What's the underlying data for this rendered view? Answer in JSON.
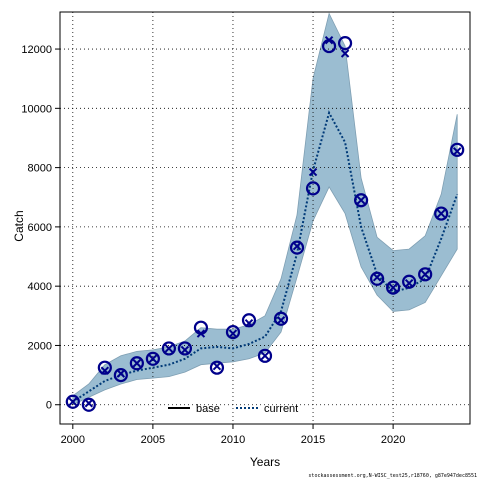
{
  "chart_data": {
    "type": "line",
    "xlabel": "Years",
    "ylabel": "Catch",
    "xlim": [
      1999.2,
      2024.8
    ],
    "ylim": [
      -650,
      13250
    ],
    "x_ticks": [
      2000,
      2005,
      2010,
      2015,
      2020
    ],
    "y_ticks": [
      0,
      2000,
      4000,
      6000,
      8000,
      10000,
      12000
    ],
    "grid": true,
    "legend_position": "bottom-center",
    "colors": {
      "band": "#9bbdd1",
      "band_edge": "#7f9fb3",
      "current": "#003a78",
      "observed": "#00008b",
      "grid": "#000000"
    },
    "legend": [
      {
        "label": "base",
        "style": "solid"
      },
      {
        "label": "current",
        "style": "dotted"
      }
    ],
    "years": [
      2000,
      2001,
      2002,
      2003,
      2004,
      2005,
      2006,
      2007,
      2008,
      2009,
      2010,
      2011,
      2012,
      2013,
      2014,
      2015,
      2016,
      2017,
      2018,
      2019,
      2020,
      2021,
      2022,
      2023,
      2024
    ],
    "series": [
      {
        "name": "current",
        "values": [
          100,
          450,
          800,
          1000,
          1150,
          1250,
          1350,
          1550,
          1900,
          1950,
          1900,
          2050,
          2300,
          3150,
          5100,
          7900,
          9850,
          8850,
          6000,
          4400,
          3800,
          3950,
          4250,
          5600,
          7100
        ]
      },
      {
        "name": "band_upper",
        "values": [
          300,
          700,
          1350,
          1650,
          1800,
          1850,
          1950,
          2150,
          2600,
          2550,
          2550,
          2700,
          3000,
          4250,
          6400,
          11000,
          13200,
          12100,
          7650,
          5650,
          5200,
          5250,
          5700,
          7100,
          9800
        ]
      },
      {
        "name": "band_lower",
        "values": [
          0,
          250,
          500,
          700,
          850,
          900,
          950,
          1100,
          1350,
          1400,
          1450,
          1550,
          1750,
          2450,
          4300,
          6200,
          7350,
          6450,
          4650,
          3700,
          3150,
          3200,
          3450,
          4350,
          5250
        ]
      },
      {
        "name": "observed_circles",
        "values": [
          100,
          0,
          1250,
          1000,
          1400,
          1550,
          1900,
          1900,
          2600,
          1250,
          2450,
          2850,
          1650,
          2900,
          5300,
          7300,
          12100,
          12200,
          6900,
          4250,
          3950,
          4150,
          4400,
          6450,
          8600
        ]
      },
      {
        "name": "observed_x",
        "values": [
          100,
          50,
          1150,
          1050,
          1400,
          1550,
          1900,
          1850,
          2400,
          1300,
          2400,
          2750,
          1650,
          2850,
          5350,
          7850,
          12300,
          11850,
          6900,
          4300,
          3950,
          4100,
          4400,
          6450,
          8550
        ]
      }
    ]
  },
  "footer_text": "stockassessment.org,N-WISC_test25,r18760, g87e947dec8551"
}
